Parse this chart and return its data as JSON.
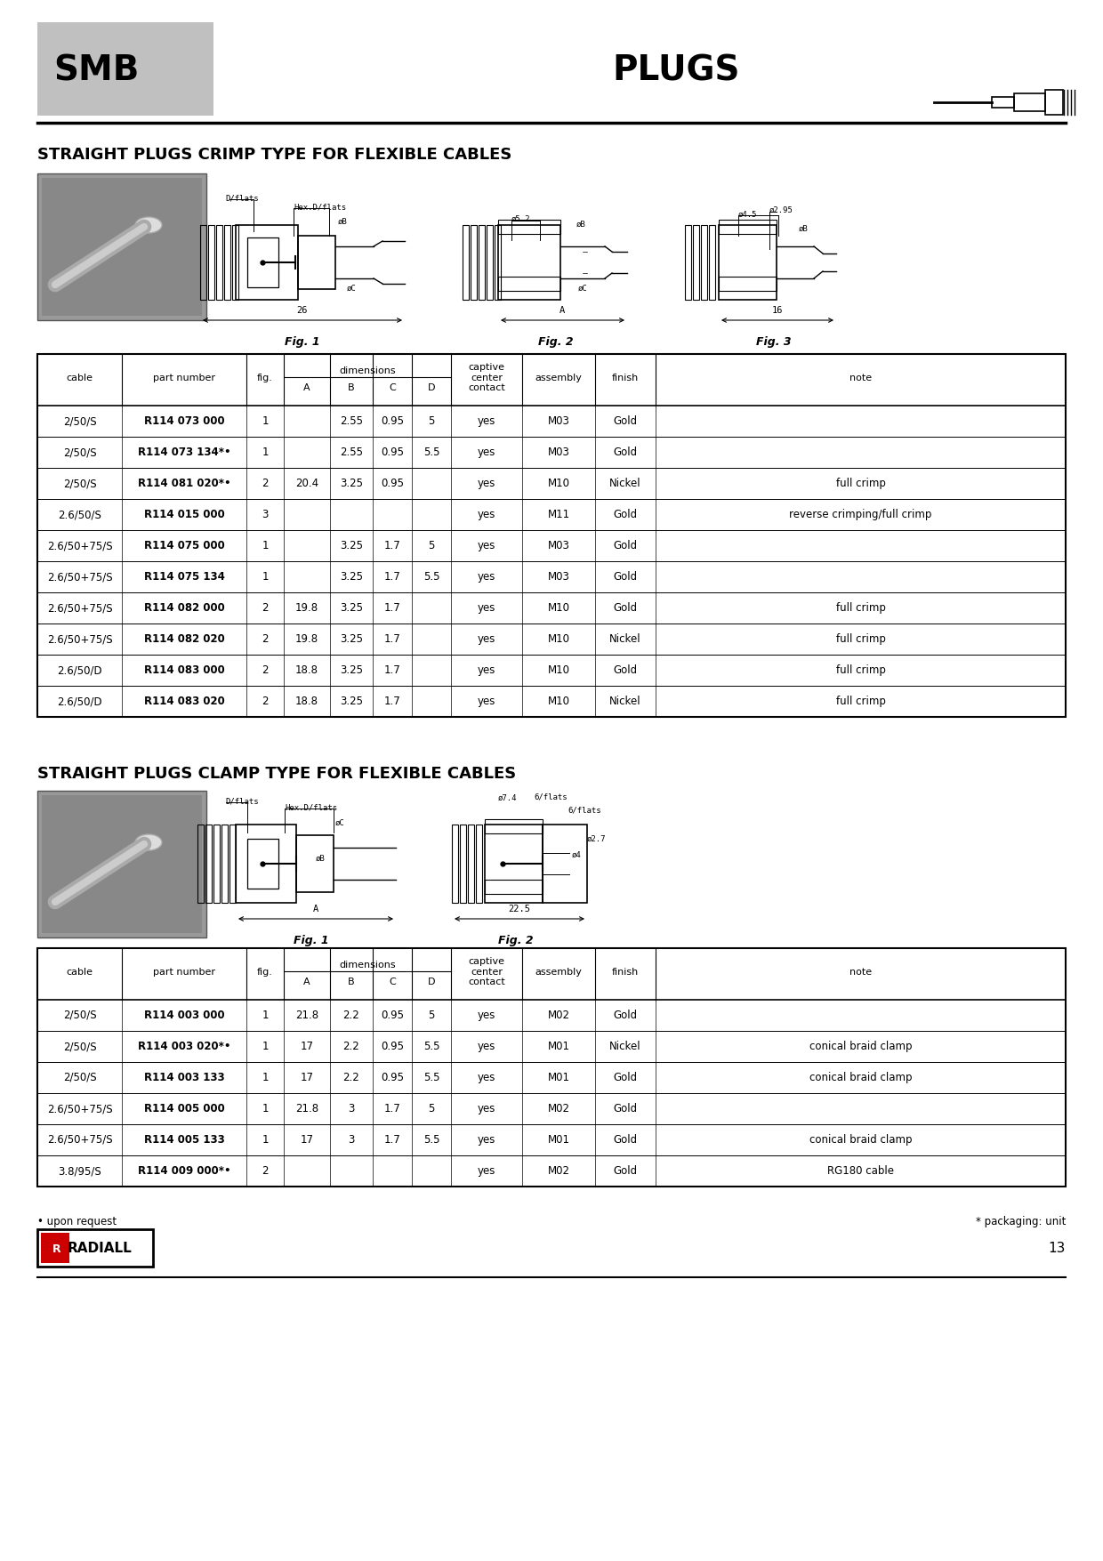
{
  "page_width": 12.4,
  "page_height": 17.55,
  "bg_color": "#ffffff",
  "header_gray": "#c0c0c0",
  "smb_text": "SMB",
  "plugs_text": "PLUGS",
  "section1_title": "STRAIGHT PLUGS CRIMP TYPE FOR FLEXIBLE CABLES",
  "section2_title": "STRAIGHT PLUGS CLAMP TYPE FOR FLEXIBLE CABLES",
  "table1_rows": [
    [
      "2/50/S",
      "R114 073 000",
      "1",
      "",
      "2.55",
      "0.95",
      "5",
      "yes",
      "M03",
      "Gold",
      ""
    ],
    [
      "2/50/S",
      "R114 073 134*•",
      "1",
      "",
      "2.55",
      "0.95",
      "5.5",
      "yes",
      "M03",
      "Gold",
      ""
    ],
    [
      "2/50/S",
      "R114 081 020*•",
      "2",
      "20.4",
      "3.25",
      "0.95",
      "",
      "yes",
      "M10",
      "Nickel",
      "full crimp"
    ],
    [
      "2.6/50/S",
      "R114 015 000",
      "3",
      "",
      "",
      "",
      "",
      "yes",
      "M11",
      "Gold",
      "reverse crimping/full crimp"
    ],
    [
      "2.6/50+75/S",
      "R114 075 000",
      "1",
      "",
      "3.25",
      "1.7",
      "5",
      "yes",
      "M03",
      "Gold",
      ""
    ],
    [
      "2.6/50+75/S",
      "R114 075 134",
      "1",
      "",
      "3.25",
      "1.7",
      "5.5",
      "yes",
      "M03",
      "Gold",
      ""
    ],
    [
      "2.6/50+75/S",
      "R114 082 000",
      "2",
      "19.8",
      "3.25",
      "1.7",
      "",
      "yes",
      "M10",
      "Gold",
      "full crimp"
    ],
    [
      "2.6/50+75/S",
      "R114 082 020",
      "2",
      "19.8",
      "3.25",
      "1.7",
      "",
      "yes",
      "M10",
      "Nickel",
      "full crimp"
    ],
    [
      "2.6/50/D",
      "R114 083 000",
      "2",
      "18.8",
      "3.25",
      "1.7",
      "",
      "yes",
      "M10",
      "Gold",
      "full crimp"
    ],
    [
      "2.6/50/D",
      "R114 083 020",
      "2",
      "18.8",
      "3.25",
      "1.7",
      "",
      "yes",
      "M10",
      "Nickel",
      "full crimp"
    ]
  ],
  "table2_rows": [
    [
      "2/50/S",
      "R114 003 000",
      "1",
      "21.8",
      "2.2",
      "0.95",
      "5",
      "yes",
      "M02",
      "Gold",
      ""
    ],
    [
      "2/50/S",
      "R114 003 020*•",
      "1",
      "17",
      "2.2",
      "0.95",
      "5.5",
      "yes",
      "M01",
      "Nickel",
      "conical braid clamp"
    ],
    [
      "2/50/S",
      "R114 003 133",
      "1",
      "17",
      "2.2",
      "0.95",
      "5.5",
      "yes",
      "M01",
      "Gold",
      "conical braid clamp"
    ],
    [
      "2.6/50+75/S",
      "R114 005 000",
      "1",
      "21.8",
      "3",
      "1.7",
      "5",
      "yes",
      "M02",
      "Gold",
      ""
    ],
    [
      "2.6/50+75/S",
      "R114 005 133",
      "1",
      "17",
      "3",
      "1.7",
      "5.5",
      "yes",
      "M01",
      "Gold",
      "conical braid clamp"
    ],
    [
      "3.8/95/S",
      "R114 009 000*•",
      "2",
      "",
      "",
      "",
      "",
      "yes",
      "M02",
      "Gold",
      "RG180 cable"
    ]
  ],
  "footer_note": "• upon request",
  "footer_star": "* packaging: unit",
  "page_number": "13"
}
